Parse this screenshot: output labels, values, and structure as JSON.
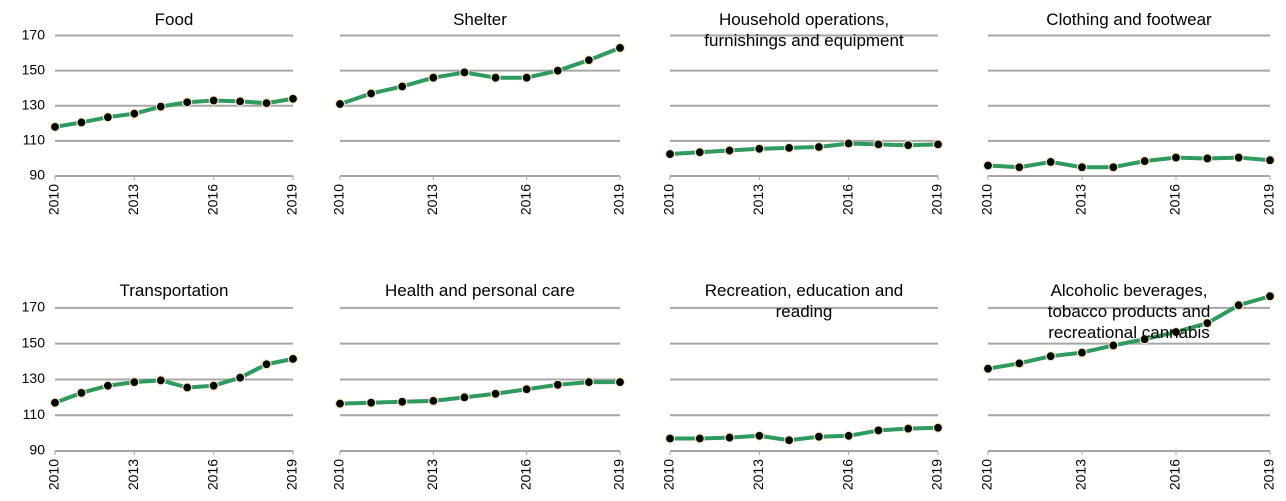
{
  "chart_data": [
    {
      "type": "line",
      "title": "Food",
      "x": [
        2010,
        2011,
        2012,
        2013,
        2014,
        2015,
        2016,
        2017,
        2018,
        2019
      ],
      "values": [
        118,
        120.5,
        123.5,
        125.5,
        129.5,
        132,
        133,
        132.5,
        131.5,
        134
      ],
      "color": "#2e9b5e",
      "xlim": [
        2010,
        2019
      ],
      "xticks": [
        2010,
        2013,
        2016,
        2019
      ],
      "ylim": [
        90,
        180
      ],
      "yticks": [
        90,
        110,
        130,
        150,
        170
      ],
      "grid": true
    },
    {
      "type": "line",
      "title": "Shelter",
      "x": [
        2010,
        2011,
        2012,
        2013,
        2014,
        2015,
        2016,
        2017,
        2018,
        2019
      ],
      "values": [
        131,
        137,
        141,
        146,
        149,
        146,
        146,
        150,
        156,
        163
      ],
      "color": "#2e9b5e",
      "xlim": [
        2010,
        2019
      ],
      "xticks": [
        2010,
        2013,
        2016,
        2019
      ],
      "ylim": [
        90,
        180
      ],
      "yticks": [
        90,
        110,
        130,
        150,
        170
      ],
      "grid": true
    },
    {
      "type": "line",
      "title": "Household operations, furnishings and equipment",
      "x": [
        2010,
        2011,
        2012,
        2013,
        2014,
        2015,
        2016,
        2017,
        2018,
        2019
      ],
      "values": [
        102.5,
        103.5,
        104.5,
        105.5,
        106,
        106.5,
        108.5,
        108,
        107.5,
        108
      ],
      "color": "#2e9b5e",
      "xlim": [
        2010,
        2019
      ],
      "xticks": [
        2010,
        2013,
        2016,
        2019
      ],
      "ylim": [
        90,
        180
      ],
      "yticks": [
        90,
        110,
        130,
        150,
        170
      ],
      "grid": true
    },
    {
      "type": "line",
      "title": "Clothing and footwear",
      "x": [
        2010,
        2011,
        2012,
        2013,
        2014,
        2015,
        2016,
        2017,
        2018,
        2019
      ],
      "values": [
        96,
        95,
        98,
        95,
        95,
        98.5,
        100.5,
        100,
        100.5,
        99
      ],
      "color": "#2e9b5e",
      "xlim": [
        2010,
        2019
      ],
      "xticks": [
        2010,
        2013,
        2016,
        2019
      ],
      "ylim": [
        90,
        180
      ],
      "yticks": [
        90,
        110,
        130,
        150,
        170
      ],
      "grid": true
    },
    {
      "type": "line",
      "title": "Transportation",
      "x": [
        2010,
        2011,
        2012,
        2013,
        2014,
        2015,
        2016,
        2017,
        2018,
        2019
      ],
      "values": [
        117,
        122.5,
        126.5,
        128.5,
        129.5,
        125.5,
        126.5,
        131,
        138.5,
        141.5
      ],
      "color": "#2e9b5e",
      "xlim": [
        2010,
        2019
      ],
      "xticks": [
        2010,
        2013,
        2016,
        2019
      ],
      "ylim": [
        90,
        180
      ],
      "yticks": [
        90,
        110,
        130,
        150,
        170
      ],
      "grid": true
    },
    {
      "type": "line",
      "title": "Health and personal care",
      "x": [
        2010,
        2011,
        2012,
        2013,
        2014,
        2015,
        2016,
        2017,
        2018,
        2019
      ],
      "values": [
        116.5,
        117,
        117.5,
        118,
        120,
        122,
        124.5,
        127,
        128.5,
        128.5
      ],
      "color": "#2e9b5e",
      "xlim": [
        2010,
        2019
      ],
      "xticks": [
        2010,
        2013,
        2016,
        2019
      ],
      "ylim": [
        90,
        180
      ],
      "yticks": [
        90,
        110,
        130,
        150,
        170
      ],
      "grid": true
    },
    {
      "type": "line",
      "title": "Recreation, education and reading",
      "x": [
        2010,
        2011,
        2012,
        2013,
        2014,
        2015,
        2016,
        2017,
        2018,
        2019
      ],
      "values": [
        97,
        97,
        97.5,
        98.5,
        96,
        98,
        98.5,
        101.5,
        102.5,
        103
      ],
      "color": "#2e9b5e",
      "xlim": [
        2010,
        2019
      ],
      "xticks": [
        2010,
        2013,
        2016,
        2019
      ],
      "ylim": [
        90,
        180
      ],
      "yticks": [
        90,
        110,
        130,
        150,
        170
      ],
      "grid": true
    },
    {
      "type": "line",
      "title": "Alcoholic beverages, tobacco products and recreational cannabis",
      "x": [
        2010,
        2011,
        2012,
        2013,
        2014,
        2015,
        2016,
        2017,
        2018,
        2019
      ],
      "values": [
        136,
        139,
        143,
        145,
        149,
        152.5,
        156.5,
        161.5,
        171.5,
        176.5
      ],
      "color": "#2e9b5e",
      "xlim": [
        2010,
        2019
      ],
      "xticks": [
        2010,
        2013,
        2016,
        2019
      ],
      "ylim": [
        90,
        180
      ],
      "yticks": [
        90,
        110,
        130,
        150,
        170
      ],
      "grid": true
    }
  ]
}
